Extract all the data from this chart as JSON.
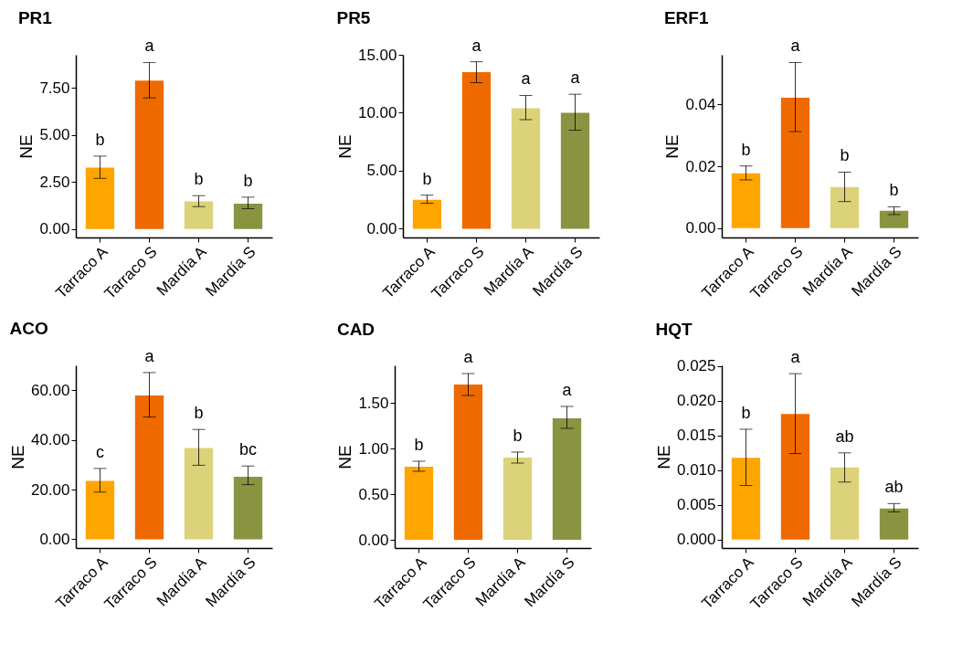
{
  "chart_data": [
    {
      "type": "bar",
      "title": "PR1",
      "ylabel": "NE",
      "categories": [
        "Tarraco A",
        "Tarraco S",
        "Mardía A",
        "Mardía S"
      ],
      "values": [
        3.26,
        7.88,
        1.46,
        1.34
      ],
      "colors": [
        "#ffa500",
        "#ee6a00",
        "#dcd27a",
        "#8a9440"
      ],
      "errors": [
        [
          2.69,
          3.87
        ],
        [
          6.96,
          8.84
        ],
        [
          1.19,
          1.77
        ],
        [
          1.08,
          1.69
        ]
      ],
      "ylim": [
        -0.45,
        9.25
      ],
      "yticks": [
        {
          "value": 0,
          "label": "0.00"
        },
        {
          "value": 2.5,
          "label": "2.50"
        },
        {
          "value": 5,
          "label": "5.00"
        },
        {
          "value": 7.5,
          "label": "7.50"
        }
      ],
      "annotations": [
        "b",
        "a",
        "b",
        "b"
      ]
    },
    {
      "type": "bar",
      "title": "PR5",
      "ylabel": "NE",
      "categories": [
        "Tarraco A",
        "Tarraco S",
        "Mardía A",
        "Mardía S"
      ],
      "values": [
        2.5,
        13.5,
        10.4,
        10.0
      ],
      "colors": [
        "#ffa500",
        "#ee6a00",
        "#dcd27a",
        "#8a9440"
      ],
      "errors": [
        [
          2.2,
          2.9
        ],
        [
          12.6,
          14.4
        ],
        [
          9.4,
          11.5
        ],
        [
          8.5,
          11.6
        ]
      ],
      "ylim": [
        -0.75,
        15
      ],
      "yticks": [
        {
          "value": 0,
          "label": "0.00"
        },
        {
          "value": 5,
          "label": "5.00"
        },
        {
          "value": 10,
          "label": "10.00"
        },
        {
          "value": 15,
          "label": "15.00"
        }
      ],
      "annotations": [
        "b",
        "a",
        "a",
        "a"
      ]
    },
    {
      "type": "bar",
      "title": "ERF1",
      "ylabel": "NE",
      "categories": [
        "Tarraco A",
        "Tarraco S",
        "Mardía A",
        "Mardía S"
      ],
      "values": [
        0.0177,
        0.0421,
        0.0133,
        0.0056
      ],
      "colors": [
        "#ffa500",
        "#ee6a00",
        "#dcd27a",
        "#8a9440"
      ],
      "errors": [
        [
          0.0156,
          0.0201
        ],
        [
          0.0312,
          0.0535
        ],
        [
          0.0086,
          0.0181
        ],
        [
          0.0044,
          0.0069
        ]
      ],
      "ylim": [
        -0.003,
        0.056
      ],
      "yticks": [
        {
          "value": 0,
          "label": "0.00"
        },
        {
          "value": 0.02,
          "label": "0.02"
        },
        {
          "value": 0.04,
          "label": "0.04"
        }
      ],
      "annotations": [
        "b",
        "a",
        "b",
        "b"
      ]
    },
    {
      "type": "bar",
      "title": "ACO",
      "ylabel": "NE",
      "categories": [
        "Tarraco A",
        "Tarraco S",
        "Mardía A",
        "Mardía S"
      ],
      "values": [
        23.5,
        57.9,
        36.7,
        25.2
      ],
      "colors": [
        "#ffa500",
        "#ee6a00",
        "#dcd27a",
        "#8a9440"
      ],
      "errors": [
        [
          19.0,
          28.5
        ],
        [
          49.2,
          67.1
        ],
        [
          29.8,
          44.2
        ],
        [
          22.0,
          29.5
        ]
      ],
      "ylim": [
        -3.5,
        70
      ],
      "yticks": [
        {
          "value": 0,
          "label": "0.00"
        },
        {
          "value": 20,
          "label": "20.00"
        },
        {
          "value": 40,
          "label": "40.00"
        },
        {
          "value": 60,
          "label": "60.00"
        }
      ],
      "annotations": [
        "c",
        "a",
        "b",
        "bc"
      ]
    },
    {
      "type": "bar",
      "title": "CAD",
      "ylabel": "NE",
      "categories": [
        "Tarraco A",
        "Tarraco S",
        "Mardía A",
        "Mardía S"
      ],
      "values": [
        0.8,
        1.7,
        0.9,
        1.33
      ],
      "colors": [
        "#ffa500",
        "#ee6a00",
        "#dcd27a",
        "#8a9440"
      ],
      "errors": [
        [
          0.75,
          0.86
        ],
        [
          1.58,
          1.82
        ],
        [
          0.84,
          0.96
        ],
        [
          1.22,
          1.46
        ]
      ],
      "ylim": [
        -0.09,
        1.91
      ],
      "yticks": [
        {
          "value": 0,
          "label": "0.00"
        },
        {
          "value": 0.5,
          "label": "0.50"
        },
        {
          "value": 1,
          "label": "1.00"
        },
        {
          "value": 1.5,
          "label": "1.50"
        }
      ],
      "annotations": [
        "b",
        "a",
        "b",
        "a"
      ]
    },
    {
      "type": "bar",
      "title": "HQT",
      "ylabel": "NE",
      "categories": [
        "Tarraco A",
        "Tarraco S",
        "Mardía A",
        "Mardía S"
      ],
      "values": [
        0.0118,
        0.0181,
        0.0104,
        0.0045
      ],
      "colors": [
        "#ffa500",
        "#ee6a00",
        "#dcd27a",
        "#8a9440"
      ],
      "errors": [
        [
          0.0078,
          0.0159
        ],
        [
          0.0124,
          0.0239
        ],
        [
          0.0083,
          0.0125
        ],
        [
          0.004,
          0.0052
        ]
      ],
      "ylim": [
        -0.0012,
        0.0251
      ],
      "yticks": [
        {
          "value": 0,
          "label": "0.000"
        },
        {
          "value": 0.005,
          "label": "0.005"
        },
        {
          "value": 0.01,
          "label": "0.010"
        },
        {
          "value": 0.015,
          "label": "0.015"
        },
        {
          "value": 0.02,
          "label": "0.020"
        },
        {
          "value": 0.025,
          "label": "0.025"
        }
      ],
      "annotations": [
        "b",
        "a",
        "ab",
        "ab"
      ]
    }
  ]
}
